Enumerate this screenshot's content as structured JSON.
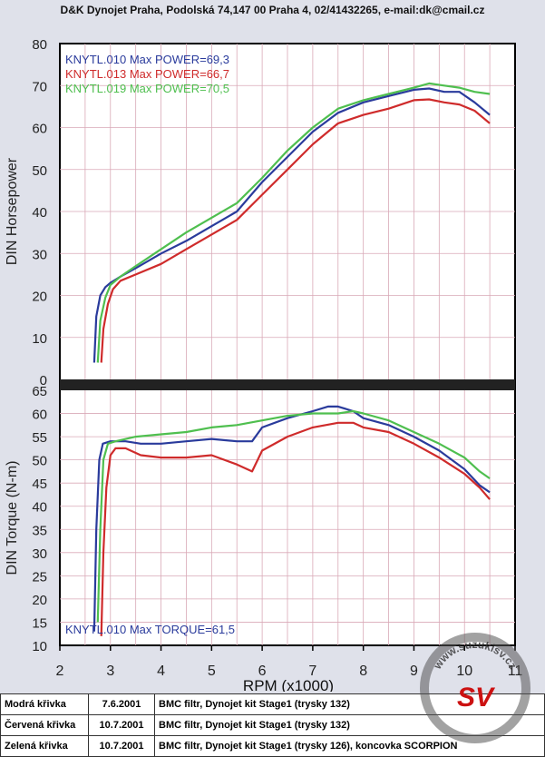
{
  "header": "D&K Dynojet  Praha, Podolská 74,147 00 Praha 4, 02/41432265, e-mail:dk@cmail.cz",
  "colors": {
    "blue": "#2a3b9c",
    "red": "#cf2b2b",
    "green": "#4fbf4f",
    "grid": "#d9a9b7"
  },
  "chart_data": [
    {
      "type": "line",
      "ylabel": "DIN Horsepower",
      "ylim": [
        0,
        80
      ],
      "yticks": [
        0,
        10,
        20,
        30,
        40,
        50,
        60,
        70,
        80
      ],
      "xlim": [
        2,
        11
      ],
      "legend": [
        {
          "text": "KNYTL.010  Max POWER=69,3",
          "color": "blue"
        },
        {
          "text": "KNYTL.013  Max POWER=66,7",
          "color": "red"
        },
        {
          "text": "KNYTL.019  Max POWER=70,5",
          "color": "green"
        }
      ],
      "series": [
        {
          "color": "blue",
          "x": [
            2.68,
            2.72,
            2.8,
            2.9,
            3.0,
            3.2,
            3.5,
            4.0,
            4.5,
            5.0,
            5.5,
            6.0,
            6.5,
            7.0,
            7.5,
            8.0,
            8.5,
            9.0,
            9.3,
            9.6,
            9.9,
            10.2,
            10.5
          ],
          "y": [
            4,
            15,
            20,
            22,
            23,
            24.5,
            26.5,
            30,
            33,
            36.5,
            40,
            47,
            53,
            59,
            63.5,
            66,
            67.5,
            69,
            69.3,
            68.5,
            68.5,
            66,
            63
          ]
        },
        {
          "color": "red",
          "x": [
            2.82,
            2.86,
            2.95,
            3.05,
            3.2,
            3.5,
            4.0,
            4.5,
            5.0,
            5.5,
            6.0,
            6.5,
            7.0,
            7.5,
            8.0,
            8.5,
            9.0,
            9.3,
            9.6,
            9.9,
            10.2,
            10.5
          ],
          "y": [
            4,
            12,
            18,
            21.5,
            23.5,
            25,
            27.5,
            31,
            34.5,
            38,
            44,
            50,
            56,
            61,
            63,
            64.5,
            66.5,
            66.7,
            66,
            65.5,
            64,
            61
          ]
        },
        {
          "color": "green",
          "x": [
            2.75,
            2.8,
            2.9,
            3.0,
            3.2,
            3.5,
            4.0,
            4.5,
            5.0,
            5.5,
            6.0,
            6.5,
            7.0,
            7.5,
            8.0,
            8.5,
            9.0,
            9.3,
            9.6,
            9.9,
            10.2,
            10.5
          ],
          "y": [
            4,
            14,
            19.5,
            22.5,
            24.5,
            27,
            31,
            35,
            38.5,
            42,
            48,
            54.5,
            60,
            64.5,
            66.5,
            68,
            69.5,
            70.5,
            70,
            69.5,
            68.5,
            68
          ]
        }
      ]
    },
    {
      "type": "line",
      "ylabel": "DIN Torque (N-m)",
      "xlabel": "RPM (x1000)",
      "ylim": [
        10,
        65
      ],
      "yticks": [
        10,
        15,
        20,
        25,
        30,
        35,
        40,
        45,
        50,
        55,
        60,
        65
      ],
      "xlim": [
        2,
        11
      ],
      "xticks": [
        2,
        3,
        4,
        5,
        6,
        7,
        8,
        9,
        10,
        11
      ],
      "legend": [
        {
          "text": "KNYTL.010  Max TORQUE=61,5",
          "color": "blue"
        }
      ],
      "series": [
        {
          "color": "blue",
          "x": [
            2.68,
            2.72,
            2.78,
            2.85,
            3.0,
            3.3,
            3.6,
            4.0,
            4.5,
            5.0,
            5.5,
            5.8,
            6.0,
            6.5,
            7.0,
            7.3,
            7.5,
            7.8,
            8.0,
            8.5,
            9.0,
            9.5,
            10.0,
            10.3,
            10.5
          ],
          "y": [
            13,
            35,
            50,
            53.5,
            54,
            54,
            53.5,
            53.5,
            54,
            54.5,
            54,
            54,
            57,
            59,
            60.5,
            61.5,
            61.5,
            60.5,
            59,
            57.5,
            55,
            52,
            48,
            44.5,
            43
          ]
        },
        {
          "color": "red",
          "x": [
            2.82,
            2.86,
            2.92,
            3.0,
            3.1,
            3.3,
            3.6,
            4.0,
            4.5,
            5.0,
            5.5,
            5.8,
            6.0,
            6.5,
            7.0,
            7.5,
            7.8,
            8.0,
            8.5,
            9.0,
            9.5,
            10.0,
            10.3,
            10.5
          ],
          "y": [
            12,
            30,
            44,
            51,
            52.5,
            52.5,
            51,
            50.5,
            50.5,
            51,
            49,
            47.5,
            52,
            55,
            57,
            58,
            58,
            57,
            56,
            53.5,
            50.5,
            47,
            44,
            41.5
          ]
        },
        {
          "color": "green",
          "x": [
            2.75,
            2.8,
            2.86,
            2.95,
            3.1,
            3.5,
            4.0,
            4.5,
            5.0,
            5.5,
            6.0,
            6.5,
            7.0,
            7.5,
            7.8,
            8.0,
            8.5,
            9.0,
            9.5,
            10.0,
            10.3,
            10.5
          ],
          "y": [
            15,
            35,
            50,
            53.5,
            54,
            55,
            55.5,
            56,
            57,
            57.5,
            58.5,
            59.5,
            60,
            60,
            60.5,
            60,
            58.5,
            56,
            53.5,
            50.5,
            47.5,
            46
          ]
        }
      ]
    }
  ],
  "table": {
    "rows": [
      {
        "label": "Modrá křivka",
        "date": "7.6.2001",
        "desc": "BMC filtr, Dynojet kit Stage1 (trysky 132)"
      },
      {
        "label": "Červená křivka",
        "date": "10.7.2001",
        "desc": "BMC filtr, Dynojet kit Stage1 (trysky 132)"
      },
      {
        "label": "Zelená křivka",
        "date": "10.7.2001",
        "desc": "BMC filtr, Dynojet kit Stage1 (trysky 126), koncovka SCORPION"
      }
    ]
  },
  "watermark": {
    "text": "www.suzukisv.cz",
    "logo": "SV"
  }
}
